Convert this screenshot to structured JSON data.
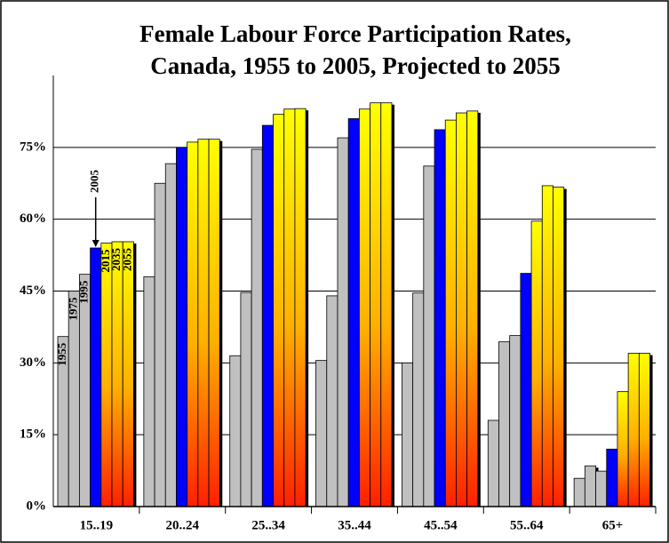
{
  "chart_data": {
    "type": "bar",
    "title": [
      "Female Labour Force Participation Rates,",
      "Canada, 1955 to 2005, Projected to 2055"
    ],
    "categories": [
      "15..19",
      "20..24",
      "25..34",
      "35..44",
      "45..54",
      "55..64",
      "65+"
    ],
    "series": [
      {
        "name": "1955",
        "color": "#c0c0c0",
        "values": [
          35.5,
          48,
          31.5,
          30.5,
          30,
          18,
          5.9
        ]
      },
      {
        "name": "1975",
        "color": "#c0c0c0",
        "values": [
          45,
          67.5,
          44.7,
          44,
          44.6,
          34.4,
          8.5
        ]
      },
      {
        "name": "1995",
        "color": "#c0c0c0",
        "values": [
          48.5,
          71.6,
          74.6,
          77,
          71.1,
          35.7,
          7.4
        ]
      },
      {
        "name": "2005",
        "color": "#0000ff",
        "values": [
          54,
          75,
          79.6,
          81,
          78.7,
          48.7,
          12
        ]
      },
      {
        "name": "2015",
        "color": "#ffff00",
        "values": [
          55,
          76.1,
          81.9,
          83,
          80.7,
          59.6,
          24
        ]
      },
      {
        "name": "2035",
        "color": "#ffff00",
        "values": [
          55.3,
          76.7,
          83,
          84.3,
          82.2,
          67,
          32
        ]
      },
      {
        "name": "2055",
        "color": "#ffff00",
        "values": [
          55.3,
          76.7,
          83.1,
          84.3,
          82.6,
          66.7,
          32
        ]
      }
    ],
    "ylim": [
      0,
      90
    ],
    "yticks": [
      {
        "value": 0,
        "label": "0%"
      },
      {
        "value": 15,
        "label": "15%"
      },
      {
        "value": 30,
        "label": "30%"
      },
      {
        "value": 45,
        "label": "45%"
      },
      {
        "value": 60,
        "label": "60%"
      },
      {
        "value": 75,
        "label": "75%"
      }
    ],
    "grid": true
  }
}
